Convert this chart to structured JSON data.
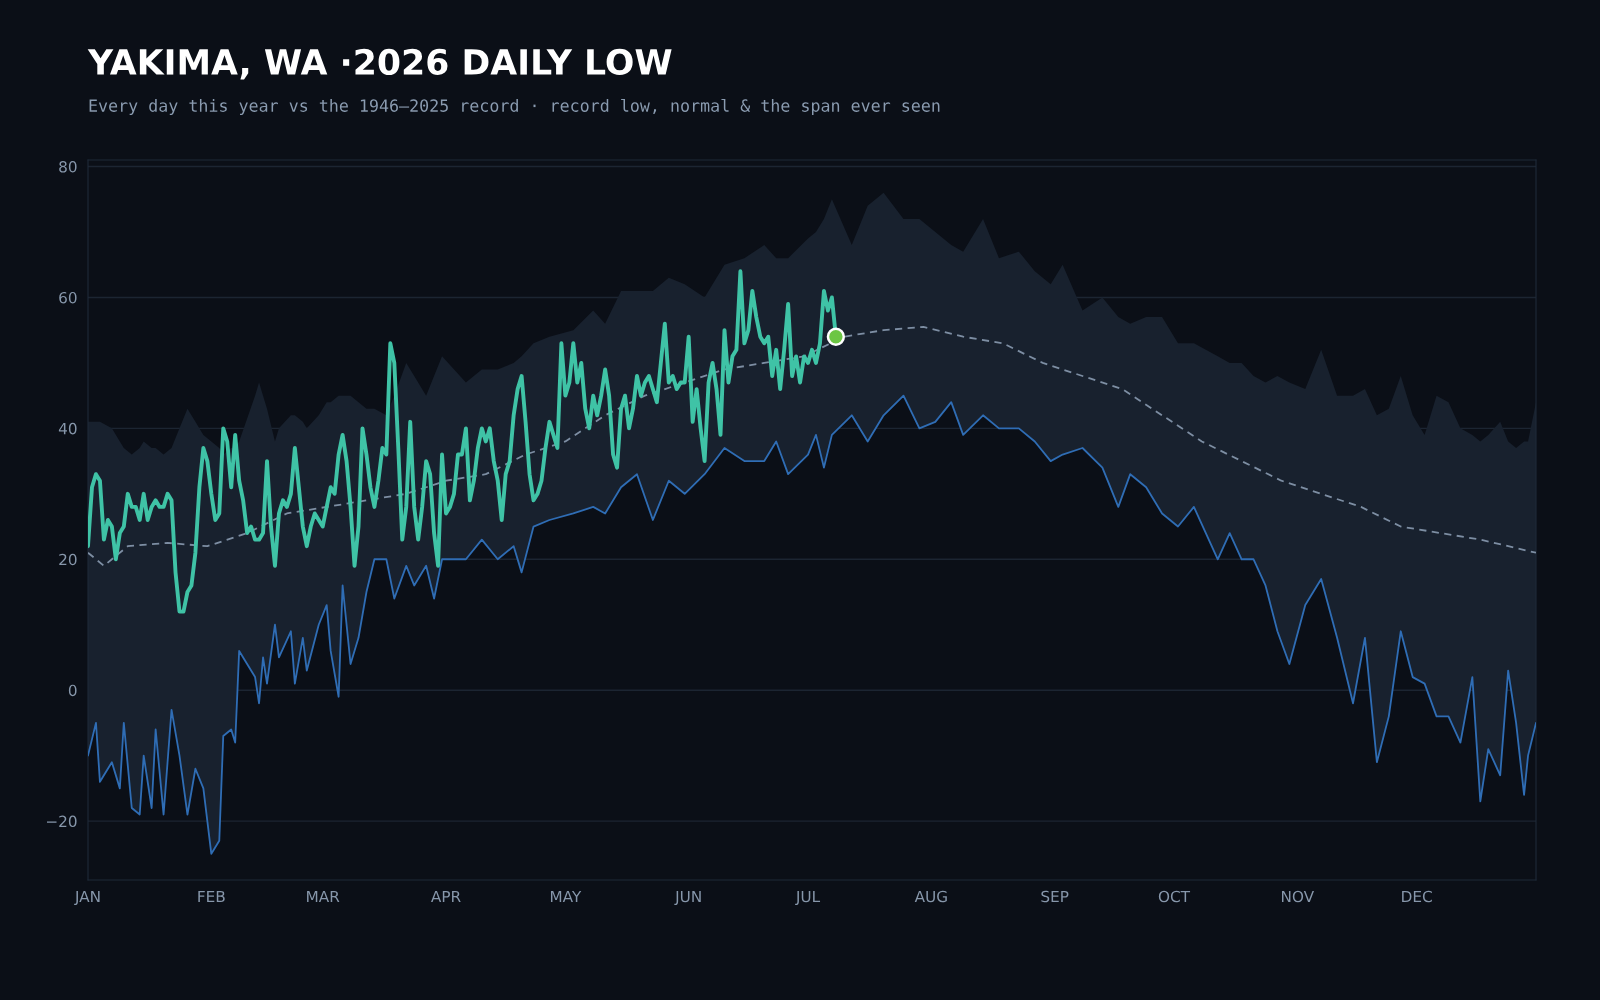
{
  "chart_data": {
    "type": "line",
    "title": "YAKIMA, WA ·2026 DAILY LOW",
    "subtitle": "Every day this year vs the 1946–2025 record · record low, normal & the span ever seen",
    "xlim": [
      "2026-01-01",
      "2026-12-31"
    ],
    "xticks": [
      {
        "value": "2026-01-01",
        "label": "JAN"
      },
      {
        "value": "2026-02-01",
        "label": "FEB"
      },
      {
        "value": "2026-03-01",
        "label": "MAR"
      },
      {
        "value": "2026-04-01",
        "label": "APR"
      },
      {
        "value": "2026-05-01",
        "label": "MAY"
      },
      {
        "value": "2026-06-01",
        "label": "JUN"
      },
      {
        "value": "2026-07-01",
        "label": "JUL"
      },
      {
        "value": "2026-08-01",
        "label": "AUG"
      },
      {
        "value": "2026-09-01",
        "label": "SEP"
      },
      {
        "value": "2026-10-01",
        "label": "OCT"
      },
      {
        "value": "2026-11-01",
        "label": "NOV"
      },
      {
        "value": "2026-12-01",
        "label": "DEC"
      }
    ],
    "ylim": [
      -29,
      81
    ],
    "yticks": [
      {
        "value": -20,
        "label": "−20"
      },
      0,
      20,
      40,
      60,
      80
    ],
    "grid": "y",
    "legend": false,
    "series": [
      {
        "color": "#2f6db5",
        "x": [
          "2026-01-01",
          "2026-01-03",
          "2026-01-04",
          "2026-01-07",
          "2026-01-09",
          "2026-01-10",
          "2026-01-12",
          "2026-01-14",
          "2026-01-15",
          "2026-01-17",
          "2026-01-18",
          "2026-01-20",
          "2026-01-22",
          "2026-01-24",
          "2026-01-26",
          "2026-01-28",
          "2026-01-30",
          "2026-02-01",
          "2026-02-03",
          "2026-02-04",
          "2026-02-06",
          "2026-02-07",
          "2026-02-08",
          "2026-02-12",
          "2026-02-13",
          "2026-02-14",
          "2026-02-15",
          "2026-02-17",
          "2026-02-18",
          "2026-02-21",
          "2026-02-22",
          "2026-02-24",
          "2026-02-25",
          "2026-02-28",
          "2026-03-02",
          "2026-03-03",
          "2026-03-05",
          "2026-03-06",
          "2026-03-08",
          "2026-03-10",
          "2026-03-12",
          "2026-03-14",
          "2026-03-17",
          "2026-03-19",
          "2026-03-22",
          "2026-03-24",
          "2026-03-27",
          "2026-03-29",
          "2026-03-31",
          "2026-04-06",
          "2026-04-10",
          "2026-04-14",
          "2026-04-18",
          "2026-04-20",
          "2026-04-23",
          "2026-04-27",
          "2026-05-03",
          "2026-05-08",
          "2026-05-11",
          "2026-05-15",
          "2026-05-19",
          "2026-05-23",
          "2026-05-27",
          "2026-05-31",
          "2026-06-05",
          "2026-06-10",
          "2026-06-15",
          "2026-06-20",
          "2026-06-23",
          "2026-06-26",
          "2026-07-01",
          "2026-07-03",
          "2026-07-05",
          "2026-07-07",
          "2026-07-12",
          "2026-07-16",
          "2026-07-20",
          "2026-07-25",
          "2026-07-29",
          "2026-08-02",
          "2026-08-06",
          "2026-08-09",
          "2026-08-14",
          "2026-08-18",
          "2026-08-23",
          "2026-08-27",
          "2026-08-31",
          "2026-09-03",
          "2026-09-08",
          "2026-09-13",
          "2026-09-17",
          "2026-09-20",
          "2026-09-24",
          "2026-09-28",
          "2026-10-02",
          "2026-10-06",
          "2026-10-09",
          "2026-10-12",
          "2026-10-15",
          "2026-10-18",
          "2026-10-21",
          "2026-10-24",
          "2026-10-27",
          "2026-10-30",
          "2026-11-03",
          "2026-11-07",
          "2026-11-11",
          "2026-11-15",
          "2026-11-18",
          "2026-11-21",
          "2026-11-24",
          "2026-11-27",
          "2026-11-30",
          "2026-12-03",
          "2026-12-06",
          "2026-12-09",
          "2026-12-12",
          "2026-12-15",
          "2026-12-17",
          "2026-12-19",
          "2026-12-22",
          "2026-12-24",
          "2026-12-26",
          "2026-12-28",
          "2026-12-29",
          "2026-12-31"
        ],
        "values": [
          -10,
          -5,
          -14,
          -11,
          -15,
          -5,
          -18,
          -19,
          -10,
          -18,
          -6,
          -19,
          -3,
          -10,
          -19,
          -12,
          -15,
          -25,
          -23,
          -7,
          -6,
          -8,
          6,
          2,
          -2,
          5,
          1,
          10,
          5,
          9,
          1,
          8,
          3,
          10,
          13,
          6,
          -1,
          16,
          4,
          8,
          15,
          20,
          20,
          14,
          19,
          16,
          19,
          14,
          20,
          20,
          23,
          20,
          22,
          18,
          25,
          26,
          27,
          28,
          27,
          31,
          33,
          26,
          32,
          30,
          33,
          37,
          35,
          35,
          38,
          33,
          36,
          39,
          34,
          39,
          42,
          38,
          42,
          45,
          40,
          41,
          44,
          39,
          42,
          40,
          40,
          38,
          35,
          36,
          37,
          34,
          28,
          33,
          31,
          27,
          25,
          28,
          24,
          20,
          24,
          20,
          20,
          16,
          9,
          4,
          13,
          17,
          8,
          -2,
          8,
          -11,
          -4,
          9,
          2,
          1,
          -4,
          -4,
          -8,
          2,
          -17,
          -9,
          -13,
          3,
          -5,
          -16,
          -10,
          -5
        ],
        "lower": [
          -10,
          -5,
          -14,
          -11,
          -15,
          -5,
          -18,
          -19,
          -10,
          -18,
          -6,
          -19,
          -3,
          -10,
          -19,
          -12,
          -15,
          -25,
          -23,
          -7,
          -6,
          -8,
          6,
          2,
          -2,
          5,
          1,
          10,
          5,
          9,
          1,
          8,
          3,
          10,
          13,
          6,
          -1,
          16,
          4,
          8,
          15,
          20,
          20,
          14,
          19,
          16,
          19,
          14,
          20,
          20,
          23,
          20,
          22,
          18,
          25,
          26,
          27,
          28,
          27,
          31,
          33,
          26,
          32,
          30,
          33,
          37,
          35,
          35,
          38,
          33,
          36,
          39,
          34,
          39,
          42,
          38,
          42,
          45,
          40,
          41,
          44,
          39,
          42,
          40,
          40,
          38,
          35,
          36,
          37,
          34,
          28,
          33,
          31,
          27,
          25,
          28,
          24,
          20,
          24,
          20,
          20,
          16,
          9,
          4,
          13,
          17,
          8,
          -2,
          8,
          -11,
          -4,
          9,
          2,
          1,
          -4,
          -4,
          -8,
          2,
          -17,
          -9,
          -13,
          3,
          -5,
          -16,
          -10,
          -5
        ],
        "upper": [
          41,
          41,
          41,
          40,
          38,
          37,
          36,
          37,
          38,
          37,
          37,
          36,
          37,
          40,
          43,
          41,
          39,
          38,
          37,
          36,
          37,
          37,
          38,
          45,
          47,
          45,
          43,
          38,
          40,
          42,
          42,
          41,
          40,
          42,
          44,
          44,
          45,
          45,
          45,
          44,
          43,
          43,
          42,
          45,
          50,
          48,
          45,
          48,
          51,
          47,
          49,
          49,
          50,
          51,
          53,
          54,
          55,
          58,
          56,
          61,
          61,
          61,
          63,
          62,
          60,
          65,
          66,
          68,
          66,
          66,
          69,
          70,
          72,
          75,
          68,
          74,
          76,
          72,
          72,
          70,
          68,
          67,
          72,
          66,
          67,
          64,
          62,
          65,
          58,
          60,
          57,
          56,
          57,
          57,
          53,
          53,
          52,
          51,
          50,
          50,
          48,
          47,
          48,
          47,
          46,
          52,
          45,
          45,
          46,
          42,
          43,
          48,
          42,
          39,
          45,
          44,
          40,
          39,
          38,
          39,
          41,
          38,
          37,
          38,
          38,
          44
        ]
      },
      {
        "color": "#7d8ea3",
        "line_style": "dashed",
        "x": [
          "2026-01-01",
          "2026-01-05",
          "2026-01-11",
          "2026-01-21",
          "2026-01-31",
          "2026-02-10",
          "2026-02-20",
          "2026-03-02",
          "2026-03-12",
          "2026-03-22",
          "2026-04-01",
          "2026-04-11",
          "2026-04-21",
          "2026-05-01",
          "2026-05-11",
          "2026-05-21",
          "2026-05-31",
          "2026-06-10",
          "2026-06-20",
          "2026-06-30",
          "2026-07-10",
          "2026-07-20",
          "2026-07-30",
          "2026-08-09",
          "2026-08-19",
          "2026-08-29",
          "2026-09-08",
          "2026-09-18",
          "2026-09-28",
          "2026-10-08",
          "2026-10-18",
          "2026-10-28",
          "2026-11-07",
          "2026-11-17",
          "2026-11-27",
          "2026-12-07",
          "2026-12-17",
          "2026-12-31"
        ],
        "values": [
          21,
          19,
          22,
          22.5,
          22,
          24,
          27,
          28,
          29,
          30,
          32,
          33,
          36,
          38,
          42,
          45,
          47,
          49,
          50,
          51,
          54,
          55,
          55.5,
          54,
          53,
          50,
          48,
          46,
          42,
          38,
          35,
          32,
          30,
          28,
          25,
          24,
          23,
          21
        ]
      },
      {
        "color": "#3fc3a6",
        "x": [
          "2026-01-01",
          "2026-01-02",
          "2026-01-03",
          "2026-01-04",
          "2026-01-05",
          "2026-01-06",
          "2026-01-07",
          "2026-01-08",
          "2026-01-09",
          "2026-01-10",
          "2026-01-11",
          "2026-01-12",
          "2026-01-13",
          "2026-01-14",
          "2026-01-15",
          "2026-01-16",
          "2026-01-17",
          "2026-01-18",
          "2026-01-19",
          "2026-01-20",
          "2026-01-21",
          "2026-01-22",
          "2026-01-23",
          "2026-01-24",
          "2026-01-25",
          "2026-01-26",
          "2026-01-27",
          "2026-01-28",
          "2026-01-29",
          "2026-01-30",
          "2026-01-31",
          "2026-02-01",
          "2026-02-02",
          "2026-02-03",
          "2026-02-04",
          "2026-02-05",
          "2026-02-06",
          "2026-02-07",
          "2026-02-08",
          "2026-02-09",
          "2026-02-10",
          "2026-02-11",
          "2026-02-12",
          "2026-02-13",
          "2026-02-14",
          "2026-02-15",
          "2026-02-16",
          "2026-02-17",
          "2026-02-18",
          "2026-02-19",
          "2026-02-20",
          "2026-02-21",
          "2026-02-22",
          "2026-02-23",
          "2026-02-24",
          "2026-02-25",
          "2026-02-26",
          "2026-02-27",
          "2026-02-28",
          "2026-03-01",
          "2026-03-02",
          "2026-03-03",
          "2026-03-04",
          "2026-03-05",
          "2026-03-06",
          "2026-03-07",
          "2026-03-08",
          "2026-03-09",
          "2026-03-10",
          "2026-03-11",
          "2026-03-12",
          "2026-03-13",
          "2026-03-14",
          "2026-03-15",
          "2026-03-16",
          "2026-03-17",
          "2026-03-18",
          "2026-03-19",
          "2026-03-20",
          "2026-03-21",
          "2026-03-22",
          "2026-03-23",
          "2026-03-24",
          "2026-03-25",
          "2026-03-26",
          "2026-03-27",
          "2026-03-28",
          "2026-03-29",
          "2026-03-30",
          "2026-03-31",
          "2026-04-01",
          "2026-04-02",
          "2026-04-03",
          "2026-04-04",
          "2026-04-05",
          "2026-04-06",
          "2026-04-07",
          "2026-04-08",
          "2026-04-09",
          "2026-04-10",
          "2026-04-11",
          "2026-04-12",
          "2026-04-13",
          "2026-04-14",
          "2026-04-15",
          "2026-04-16",
          "2026-04-17",
          "2026-04-18",
          "2026-04-19",
          "2026-04-20",
          "2026-04-21",
          "2026-04-22",
          "2026-04-23",
          "2026-04-24",
          "2026-04-25",
          "2026-04-26",
          "2026-04-27",
          "2026-04-28",
          "2026-04-29",
          "2026-04-30",
          "2026-05-01",
          "2026-05-02",
          "2026-05-03",
          "2026-05-04",
          "2026-05-05",
          "2026-05-06",
          "2026-05-07",
          "2026-05-08",
          "2026-05-09",
          "2026-05-10",
          "2026-05-11",
          "2026-05-12",
          "2026-05-13",
          "2026-05-14",
          "2026-05-15",
          "2026-05-16",
          "2026-05-17",
          "2026-05-18",
          "2026-05-19",
          "2026-05-20",
          "2026-05-21",
          "2026-05-22",
          "2026-05-23",
          "2026-05-24",
          "2026-05-25",
          "2026-05-26",
          "2026-05-27",
          "2026-05-28",
          "2026-05-29",
          "2026-05-30",
          "2026-05-31",
          "2026-06-01",
          "2026-06-02",
          "2026-06-03",
          "2026-06-04",
          "2026-06-05",
          "2026-06-06",
          "2026-06-07",
          "2026-06-08",
          "2026-06-09",
          "2026-06-10",
          "2026-06-11",
          "2026-06-12",
          "2026-06-13",
          "2026-06-14",
          "2026-06-15",
          "2026-06-16",
          "2026-06-17",
          "2026-06-18",
          "2026-06-19",
          "2026-06-20",
          "2026-06-21",
          "2026-06-22",
          "2026-06-23",
          "2026-06-24",
          "2026-06-25",
          "2026-06-26",
          "2026-06-27",
          "2026-06-28",
          "2026-06-29",
          "2026-06-30",
          "2026-07-01",
          "2026-07-02",
          "2026-07-03",
          "2026-07-04",
          "2026-07-05",
          "2026-07-06",
          "2026-07-07",
          "2026-07-08"
        ],
        "values": [
          22,
          31,
          33,
          32,
          23,
          26,
          25,
          20,
          24,
          25,
          30,
          28,
          28,
          26,
          30,
          26,
          28,
          29,
          28,
          28,
          30,
          29,
          18,
          12,
          12,
          15,
          16,
          21,
          31,
          37,
          35,
          30,
          26,
          27,
          40,
          38,
          31,
          39,
          32,
          29,
          24,
          25,
          23,
          23,
          24,
          35,
          25,
          19,
          27,
          29,
          28,
          30,
          37,
          31,
          25,
          22,
          25,
          27,
          26,
          25,
          28,
          31,
          30,
          36,
          39,
          35,
          28,
          19,
          25,
          40,
          36,
          31,
          28,
          32,
          37,
          36,
          53,
          50,
          37,
          23,
          28,
          41,
          28,
          23,
          28,
          35,
          33,
          24,
          19,
          36,
          27,
          28,
          30,
          36,
          36,
          40,
          29,
          32,
          37,
          40,
          38,
          40,
          35,
          32,
          26,
          33,
          35,
          42,
          46,
          48,
          41,
          33,
          29,
          30,
          32,
          37,
          41,
          39,
          37,
          53,
          45,
          47,
          53,
          47,
          50,
          43,
          40,
          45,
          42,
          45,
          49,
          45,
          36,
          34,
          43,
          45,
          40,
          43,
          48,
          45,
          47,
          48,
          46,
          44,
          50,
          56,
          47,
          48,
          46,
          47,
          47,
          54,
          41,
          46,
          40,
          35,
          47,
          50,
          46,
          39,
          55,
          47,
          51,
          52,
          64,
          53,
          55,
          61,
          57,
          54,
          53,
          54,
          48,
          52,
          46,
          52,
          59,
          48,
          51,
          47,
          51,
          50,
          52,
          50,
          53,
          61,
          58,
          60,
          54
        ]
      },
      {
        "type": "scatter",
        "color": "#6cc644",
        "marker": "circle",
        "x": [
          "2026-07-08"
        ],
        "values": [
          54
        ]
      }
    ]
  }
}
